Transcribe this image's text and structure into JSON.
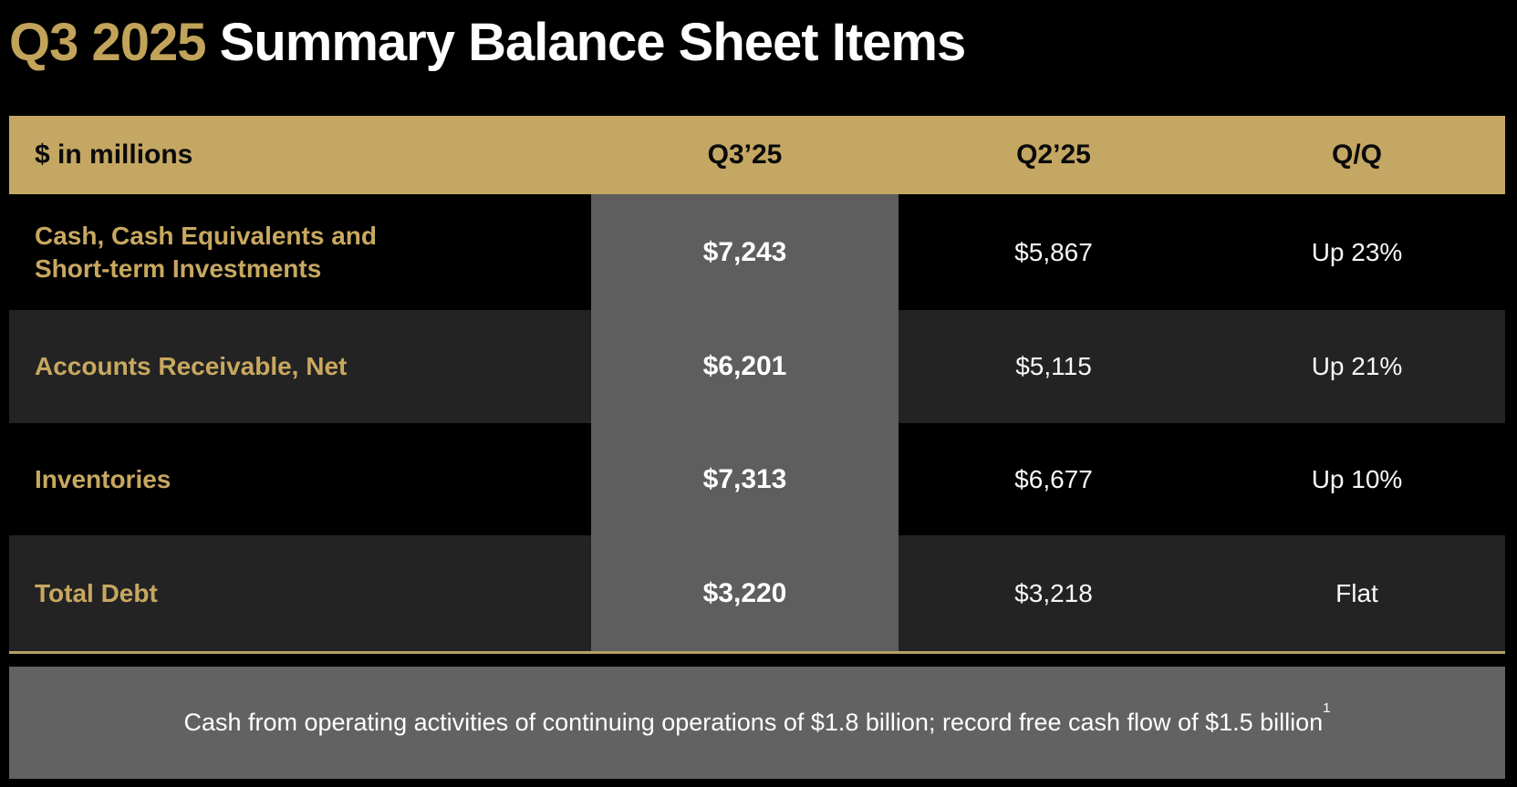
{
  "title": {
    "highlight": "Q3 2025",
    "rest": " Summary Balance Sheet Items"
  },
  "table": {
    "header": {
      "label": "$ in millions",
      "columns": [
        "Q3’25",
        "Q2’25",
        "Q/Q"
      ]
    },
    "rows": [
      {
        "label": "Cash, Cash Equivalents and Short-term Investments",
        "q3": "$7,243",
        "q2": "$5,867",
        "qq": "Up 23%"
      },
      {
        "label": "Accounts Receivable, Net",
        "q3": "$6,201",
        "q2": "$5,115",
        "qq": "Up 21%"
      },
      {
        "label": "Inventories",
        "q3": "$7,313",
        "q2": "$6,677",
        "qq": "Up 10%"
      },
      {
        "label": "Total Debt",
        "q3": "$3,220",
        "q2": "$3,218",
        "qq": "Flat"
      }
    ]
  },
  "banner": {
    "text": "Cash from operating activities of continuing operations of $1.8 billion; record free cash flow of $1.5 billion",
    "footnote_marker": "1"
  },
  "colors": {
    "accent_gold": "#C4A763",
    "title_gold": "#C1A35A",
    "label_gold": "#C8A860",
    "highlight_band_gray": "#5E5E5E",
    "row_stripe": "#232323",
    "banner_gray": "#626262",
    "background": "#000000",
    "text_white": "#FFFFFF"
  }
}
